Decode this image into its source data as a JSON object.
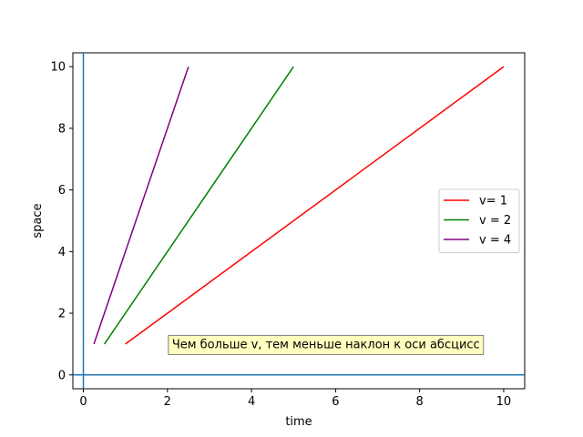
{
  "chart_data": {
    "type": "line",
    "xlabel": "time",
    "ylabel": "space",
    "xlim": [
      -0.25,
      10.5
    ],
    "ylim": [
      -0.45,
      10.45
    ],
    "xticks": [
      0,
      2,
      4,
      6,
      8,
      10
    ],
    "yticks": [
      0,
      2,
      4,
      6,
      8,
      10
    ],
    "grid": false,
    "legend_position": "center-right",
    "reference_lines": {
      "horizontal_y": 0,
      "vertical_x": 0,
      "color": "#1f77b4"
    },
    "series": [
      {
        "name": "v= 1",
        "color": "#ff0000",
        "x": [
          1,
          10
        ],
        "y": [
          1,
          10
        ]
      },
      {
        "name": "v = 2",
        "color": "#008000",
        "x": [
          0.5,
          5
        ],
        "y": [
          1,
          10
        ]
      },
      {
        "name": "v = 4",
        "color": "#800080",
        "x": [
          0.25,
          2.5
        ],
        "y": [
          1,
          10
        ]
      }
    ],
    "annotation": {
      "text": "Чем больше v, тем меньше наклон к оси абсцисс",
      "x": 2,
      "y": 1,
      "background": "#ffff80"
    }
  }
}
